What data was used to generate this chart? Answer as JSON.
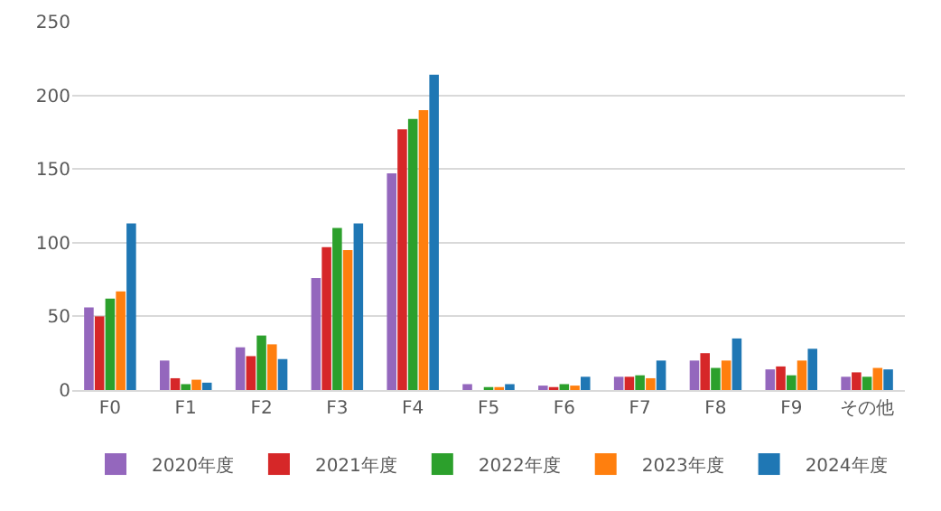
{
  "chart_data": {
    "type": "bar",
    "categories": [
      "F0",
      "F1",
      "F2",
      "F3",
      "F4",
      "F5",
      "F6",
      "F7",
      "F8",
      "F9",
      "その他"
    ],
    "series": [
      {
        "name": "2020年度",
        "color": "#9467bd",
        "values": [
          56,
          20,
          29,
          76,
          147,
          4,
          3,
          9,
          20,
          14,
          9
        ]
      },
      {
        "name": "2021年度",
        "color": "#d62728",
        "values": [
          50,
          8,
          23,
          97,
          177,
          0,
          2,
          9,
          25,
          16,
          12
        ]
      },
      {
        "name": "2022年度",
        "color": "#2ca02c",
        "values": [
          62,
          4,
          37,
          110,
          184,
          2,
          4,
          10,
          15,
          10,
          9
        ]
      },
      {
        "name": "2023年度",
        "color": "#ff7f0e",
        "values": [
          67,
          7,
          31,
          95,
          190,
          2,
          3,
          8,
          20,
          20,
          15
        ]
      },
      {
        "name": "2024年度",
        "color": "#1f77b4",
        "values": [
          113,
          5,
          21,
          113,
          214,
          4,
          9,
          20,
          35,
          28,
          14
        ]
      }
    ],
    "ylim": [
      0,
      250
    ],
    "yticks": [
      0,
      50,
      100,
      150,
      200,
      250
    ],
    "grid": "y",
    "legend": "bottom"
  }
}
